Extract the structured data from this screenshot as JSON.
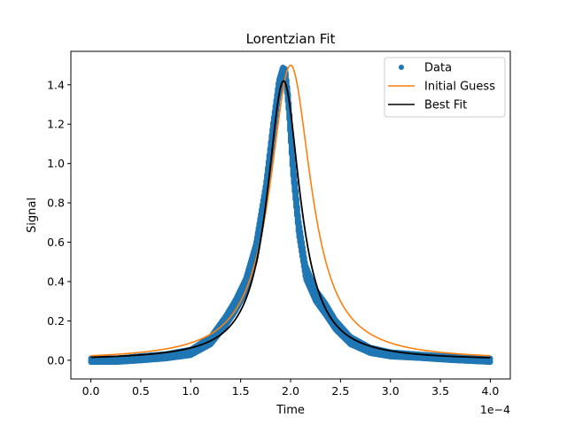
{
  "chart_data": {
    "type": "scatter",
    "title": "Lorentzian Fit",
    "xlabel": "Time",
    "ylabel": "Signal",
    "x_offset_text": "1e−4",
    "xlim": [
      -0.2,
      4.2
    ],
    "ylim": [
      -0.095,
      1.57
    ],
    "x_ticks": [
      0.0,
      0.5,
      1.0,
      1.5,
      2.0,
      2.5,
      3.0,
      3.5,
      4.0
    ],
    "x_tick_labels": [
      "0.0",
      "0.5",
      "1.0",
      "1.5",
      "2.0",
      "2.5",
      "3.0",
      "3.5",
      "4.0"
    ],
    "y_ticks": [
      0.0,
      0.2,
      0.4,
      0.6,
      0.8,
      1.0,
      1.2,
      1.4
    ],
    "y_tick_labels": [
      "0.0",
      "0.2",
      "0.4",
      "0.6",
      "0.8",
      "1.0",
      "1.2",
      "1.4"
    ],
    "legend_position": "top-right",
    "series": [
      {
        "name": "Data",
        "kind": "points",
        "color": "#1f77b4",
        "x": [
          0.0,
          0.25,
          0.5,
          0.75,
          1.0,
          1.2,
          1.35,
          1.45,
          1.55,
          1.65,
          1.75,
          1.82,
          1.88,
          1.92,
          1.95,
          1.98,
          2.02,
          2.08,
          2.15,
          2.25,
          2.35,
          2.45,
          2.6,
          2.8,
          3.0,
          3.3,
          3.6,
          4.0
        ],
        "y": [
          0.0,
          0.0,
          0.01,
          0.02,
          0.04,
          0.1,
          0.2,
          0.28,
          0.38,
          0.55,
          0.85,
          1.15,
          1.38,
          1.46,
          1.45,
          1.3,
          1.0,
          0.68,
          0.45,
          0.33,
          0.26,
          0.18,
          0.1,
          0.05,
          0.03,
          0.02,
          0.01,
          0.0
        ],
        "spread": [
          0.01,
          0.01,
          0.012,
          0.012,
          0.015,
          0.02,
          0.025,
          0.03,
          0.035,
          0.04,
          0.045,
          0.045,
          0.04,
          0.03,
          0.03,
          0.04,
          0.045,
          0.04,
          0.035,
          0.03,
          0.03,
          0.025,
          0.02,
          0.015,
          0.012,
          0.01,
          0.01,
          0.01
        ]
      },
      {
        "name": "Initial Guess",
        "kind": "lorentzian",
        "color": "#ff7f0e",
        "amplitude": 1.5,
        "center": 2.0,
        "halfwidth": 0.25
      },
      {
        "name": "Best Fit",
        "kind": "lorentzian",
        "color": "#000000",
        "amplitude": 1.42,
        "center": 1.93,
        "halfwidth": 0.2
      }
    ]
  }
}
